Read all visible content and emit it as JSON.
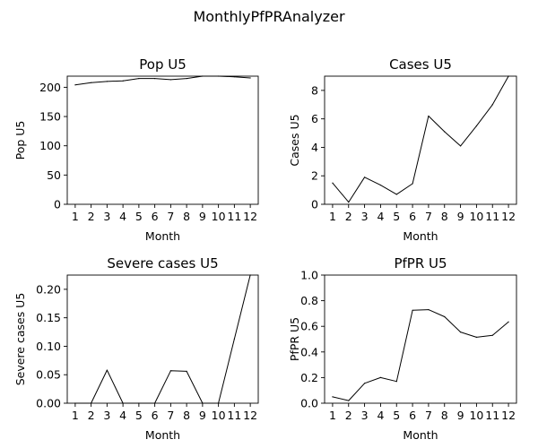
{
  "figure": {
    "title": "MonthlyPfPRAnalyzer"
  },
  "chart_data": [
    {
      "type": "line",
      "title": "Pop U5",
      "xlabel": "Month",
      "ylabel": "Pop U5",
      "x": [
        1,
        2,
        3,
        4,
        5,
        6,
        7,
        8,
        9,
        10,
        11,
        12
      ],
      "xticks": [
        "1",
        "2",
        "3",
        "4",
        "5",
        "6",
        "7",
        "8",
        "9",
        "10",
        "11",
        "12"
      ],
      "values": [
        204,
        208,
        210,
        211,
        215,
        215,
        213,
        215,
        219,
        219,
        218,
        216
      ],
      "ylim": [
        0,
        219
      ],
      "yticks": [
        0,
        50,
        100,
        150,
        200
      ],
      "ytick_labels": [
        "0",
        "50",
        "100",
        "150",
        "200"
      ],
      "grid": false
    },
    {
      "type": "line",
      "title": "Cases U5",
      "xlabel": "Month",
      "ylabel": "Cases U5",
      "x": [
        1,
        2,
        3,
        4,
        5,
        6,
        7,
        8,
        9,
        10,
        11,
        12
      ],
      "xticks": [
        "1",
        "2",
        "3",
        "4",
        "5",
        "6",
        "7",
        "8",
        "9",
        "10",
        "11",
        "12"
      ],
      "values": [
        1.5,
        0.15,
        1.9,
        1.35,
        0.7,
        1.45,
        6.2,
        5.1,
        4.1,
        5.5,
        7.0,
        9.0
      ],
      "ylim": [
        0,
        9
      ],
      "yticks": [
        0,
        2,
        4,
        6,
        8
      ],
      "ytick_labels": [
        "0",
        "2",
        "4",
        "6",
        "8"
      ],
      "grid": false
    },
    {
      "type": "line",
      "title": "Severe cases U5",
      "xlabel": "Month",
      "ylabel": "Severe cases U5",
      "x": [
        1,
        2,
        3,
        4,
        5,
        6,
        7,
        8,
        9,
        10,
        11,
        12
      ],
      "xticks": [
        "1",
        "2",
        "3",
        "4",
        "5",
        "6",
        "7",
        "8",
        "9",
        "10",
        "11",
        "12"
      ],
      "values": [
        0,
        0,
        0.058,
        0,
        0,
        0,
        0.057,
        0.056,
        0,
        0,
        0.113,
        0.225
      ],
      "ylim": [
        0,
        0.225
      ],
      "yticks": [
        0,
        0.05,
        0.1,
        0.15,
        0.2
      ],
      "ytick_labels": [
        "0.00",
        "0.05",
        "0.10",
        "0.15",
        "0.20"
      ],
      "grid": false
    },
    {
      "type": "line",
      "title": "PfPR U5",
      "xlabel": "Month",
      "ylabel": "PfPR U5",
      "x": [
        1,
        2,
        3,
        4,
        5,
        6,
        7,
        8,
        9,
        10,
        11,
        12
      ],
      "xticks": [
        "1",
        "2",
        "3",
        "4",
        "5",
        "6",
        "7",
        "8",
        "9",
        "10",
        "11",
        "12"
      ],
      "values": [
        0.05,
        0.02,
        0.155,
        0.2,
        0.17,
        0.725,
        0.73,
        0.675,
        0.555,
        0.515,
        0.53,
        0.635
      ],
      "ylim": [
        0,
        1.0
      ],
      "yticks": [
        0,
        0.2,
        0.4,
        0.6,
        0.8,
        1.0
      ],
      "ytick_labels": [
        "0.0",
        "0.2",
        "0.4",
        "0.6",
        "0.8",
        "1.0"
      ],
      "grid": false
    }
  ]
}
